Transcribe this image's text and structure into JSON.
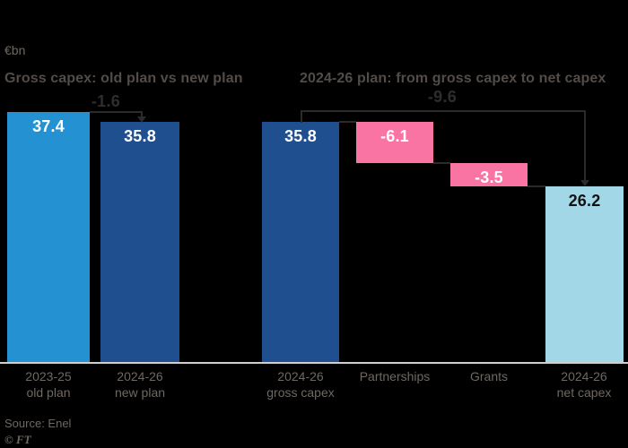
{
  "unit_label": "€bn",
  "colors": {
    "background": "#000000",
    "axis_line": "#cfcfcf",
    "annotation": "#2b2b2b",
    "subtitle_text": "#514c48",
    "gray_text": "#6e6862",
    "light_blue": "#2492d2",
    "dark_blue": "#1f4f8f",
    "pink": "#f973a3",
    "pale_blue": "#a2d7e7"
  },
  "chart_data": [
    {
      "type": "bar",
      "title": "Gross capex: old plan vs new plan",
      "unit": "€bn",
      "categories": [
        "2023-25\nold plan",
        "2024-26\nnew plan"
      ],
      "values": [
        37.4,
        35.8
      ],
      "bar_colors": [
        "#2492d2",
        "#1f4f8f"
      ],
      "value_label_colors": [
        "#ffffff",
        "#ffffff"
      ],
      "annotation": "-1.6",
      "ylim": [
        0,
        37.4
      ],
      "grid": "off",
      "legend": "none"
    },
    {
      "type": "waterfall",
      "title": "2024-26 plan: from gross capex to net capex",
      "unit": "€bn",
      "categories": [
        "2024-26\ngross capex",
        "Partnerships",
        "Grants",
        "2024-26\nnet capex"
      ],
      "values": [
        35.8,
        -6.1,
        -3.5,
        26.2
      ],
      "bar_colors": [
        "#1f4f8f",
        "#f973a3",
        "#f973a3",
        "#a2d7e7"
      ],
      "value_label_colors": [
        "#ffffff",
        "#ffffff",
        "#ffffff",
        "#111111"
      ],
      "annotation": "-9.6",
      "ylim": [
        0,
        37.4
      ],
      "grid": "off",
      "legend": "none"
    }
  ],
  "footer": {
    "source": "Source: Enel",
    "copyright": "© FT"
  }
}
